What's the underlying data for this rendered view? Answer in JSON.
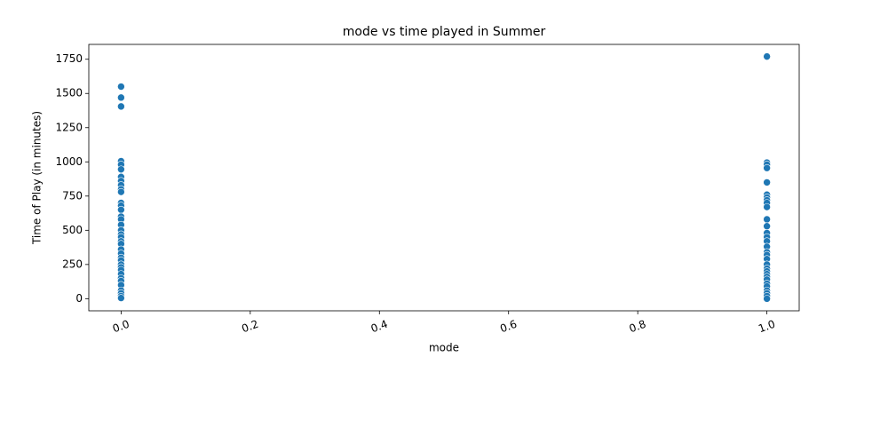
{
  "chart_data": {
    "type": "scatter",
    "title": "mode vs time played in Summer",
    "x_label": "mode",
    "y_label": "Time of Play (in minutes)",
    "color": "#1f77b4",
    "x": [
      0,
      0,
      0,
      0,
      0,
      0,
      0,
      0,
      0,
      0,
      0,
      0,
      0,
      0,
      0,
      0,
      0,
      0,
      0,
      0,
      0,
      0,
      0,
      0,
      0,
      0,
      0,
      0,
      0,
      0,
      0,
      0,
      0,
      0,
      0,
      0,
      0,
      1,
      1,
      1,
      1,
      1,
      1,
      1,
      1,
      1,
      1,
      1,
      1,
      1,
      1,
      1,
      1,
      1,
      1,
      1,
      1,
      1,
      1,
      1,
      1,
      1,
      1,
      1,
      1,
      1,
      1,
      1
    ],
    "y": [
      1550,
      1470,
      1405,
      1005,
      980,
      945,
      890,
      860,
      830,
      800,
      780,
      700,
      680,
      650,
      600,
      580,
      540,
      500,
      470,
      450,
      420,
      400,
      360,
      330,
      300,
      280,
      250,
      230,
      210,
      180,
      150,
      130,
      100,
      60,
      40,
      20,
      5,
      1770,
      995,
      980,
      955,
      850,
      760,
      740,
      720,
      700,
      670,
      580,
      530,
      480,
      450,
      420,
      380,
      340,
      320,
      290,
      250,
      220,
      200,
      180,
      160,
      140,
      110,
      90,
      60,
      40,
      20,
      0
    ],
    "xlim": [
      -0.05,
      1.05
    ],
    "ylim": [
      -88.5,
      1858.5
    ],
    "xticks": [
      {
        "value": 0,
        "label": "0.0"
      },
      0.2,
      0.4,
      0.6,
      0.8,
      {
        "value": 1,
        "label": "1.0"
      }
    ],
    "yticks": [
      0,
      250,
      500,
      750,
      1000,
      1250,
      1500,
      1750
    ]
  }
}
